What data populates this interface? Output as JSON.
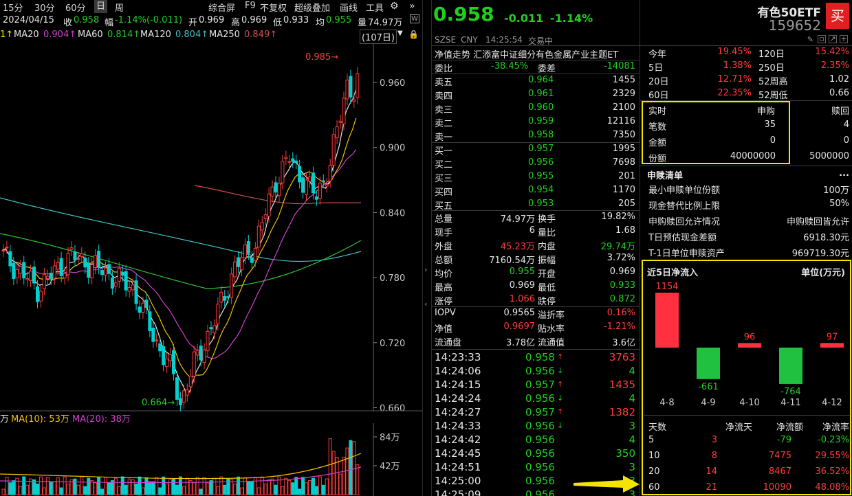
{
  "toolbar": {
    "items": [
      "15分",
      "30分",
      "60分",
      "日",
      "周",
      "综合屏",
      "F9",
      "不复权",
      "超级叠加",
      "画线",
      "工具"
    ],
    "selected": "日"
  },
  "quote_line": {
    "date": "2024/04/15",
    "close_label": "收",
    "close": "0.958",
    "amp_label": "幅",
    "change": "-1.14%(-0.011)",
    "open_label": "开",
    "open": "0.969",
    "high_label": "高",
    "high": "0.969",
    "low_label": "低",
    "low": "0.933",
    "avg_label": "均",
    "avg": "0.955",
    "vol_label": "量",
    "vol": "74.97万"
  },
  "ma_line": {
    "ma20": "MA20",
    "ma20_val": "0.904↑",
    "ma60": "MA60",
    "ma60_val": "0.814↑",
    "ma120": "MA120",
    "ma120_val": "0.804↑",
    "ma250": "MA250",
    "ma250_val": "0.849↑",
    "lead": "1↑",
    "period": "(107日)"
  },
  "price_axis": {
    "ticks": [
      "0.960",
      "0.900",
      "0.840",
      "0.780",
      "0.720",
      "0.660"
    ],
    "high_mark": "0.985",
    "low_mark": "0.664"
  },
  "volume_panel": {
    "legend_prefix": "万",
    "ma10": "MA(10): 53万",
    "ma20": "MA(20): 38万",
    "ticks": [
      "84万",
      "42万"
    ]
  },
  "colors": {
    "up": "#ff3c3c",
    "down": "#00d0d0",
    "ma5": "#e6e6e6",
    "ma10": "#f2c200",
    "ma20": "#d040d0",
    "ma60": "#30c030",
    "ma120": "#40c0c0",
    "ma250": "#d05050"
  },
  "header": {
    "price": "0.958",
    "change": "-0.011",
    "pct": "-1.14%",
    "market": "SZSE",
    "currency": "CNY",
    "time": "14:25:54",
    "status": "交易中",
    "name": "有色50ETF",
    "code": "159652",
    "buy_label": "买"
  },
  "fund_title": "净值走势 汇添富中证细分有色金属产业主题ET",
  "ratio": {
    "label": "委比",
    "value": "-38.45%",
    "diff_label": "委差",
    "diff": "-14081"
  },
  "asks": [
    {
      "label": "卖五",
      "price": "0.964",
      "vol": "1455"
    },
    {
      "label": "卖四",
      "price": "0.961",
      "vol": "2329"
    },
    {
      "label": "卖三",
      "price": "0.960",
      "vol": "2100"
    },
    {
      "label": "卖二",
      "price": "0.959",
      "vol": "12116"
    },
    {
      "label": "卖一",
      "price": "0.958",
      "vol": "7350"
    }
  ],
  "bids": [
    {
      "label": "买一",
      "price": "0.957",
      "vol": "1995"
    },
    {
      "label": "买二",
      "price": "0.956",
      "vol": "7698"
    },
    {
      "label": "买三",
      "price": "0.955",
      "vol": "201"
    },
    {
      "label": "买四",
      "price": "0.954",
      "vol": "1170"
    },
    {
      "label": "买五",
      "price": "0.953",
      "vol": "205"
    }
  ],
  "stats": [
    {
      "l1": "总量",
      "v1": "74.97万",
      "l2": "换手",
      "v2": "19.82%"
    },
    {
      "l1": "现手",
      "v1": "6",
      "l2": "量比",
      "v2": "1.68"
    },
    {
      "l1": "外盘",
      "v1": "45.23万",
      "l2": "内盘",
      "v2": "29.74万"
    },
    {
      "l1": "总额",
      "v1": "7160.54万",
      "l2": "振幅",
      "v2": "3.72%"
    },
    {
      "l1": "均价",
      "v1": "0.955",
      "l2": "开盘",
      "v2": "0.969"
    },
    {
      "l1": "最高",
      "v1": "0.969",
      "l2": "最低",
      "v2": "0.933"
    },
    {
      "l1": "涨停",
      "v1": "1.066",
      "l2": "跌停",
      "v2": "0.872"
    },
    {
      "l1": "IOPV",
      "v1": "0.9565",
      "l2": "溢折率",
      "v2": "0.16%"
    },
    {
      "l1": "净值",
      "v1": "0.9697",
      "l2": "贴水率",
      "v2": "-1.21%"
    },
    {
      "l1": "流通盘",
      "v1": "3.78亿",
      "l2": "流通值",
      "v2": "3.6亿"
    }
  ],
  "ticks_list": [
    {
      "time": "14:23:33",
      "price": "0.958",
      "dir": "↑",
      "vol": "3763"
    },
    {
      "time": "14:24:06",
      "price": "0.956",
      "dir": "↓",
      "vol": "4"
    },
    {
      "time": "14:24:15",
      "price": "0.957",
      "dir": "↑",
      "vol": "1435"
    },
    {
      "time": "14:24:24",
      "price": "0.956",
      "dir": "↓",
      "vol": "4"
    },
    {
      "time": "14:24:27",
      "price": "0.957",
      "dir": "↑",
      "vol": "1382"
    },
    {
      "time": "14:24:33",
      "price": "0.956",
      "dir": "↓",
      "vol": "3"
    },
    {
      "time": "14:24:42",
      "price": "0.956",
      "dir": "",
      "vol": "4"
    },
    {
      "time": "14:24:45",
      "price": "0.956",
      "dir": "",
      "vol": "350"
    },
    {
      "time": "14:24:51",
      "price": "0.956",
      "dir": "",
      "vol": "3"
    },
    {
      "time": "14:25:00",
      "price": "0.956",
      "dir": "",
      "vol": "3"
    },
    {
      "time": "14:25:09",
      "price": "0.956",
      "dir": "",
      "vol": "3"
    }
  ],
  "perf": [
    {
      "l1": "今年",
      "v1": "19.45%",
      "l2": "120日",
      "v2": "15.42%"
    },
    {
      "l1": "5日",
      "v1": "1.38%",
      "l2": "250日",
      "v2": "2.35%"
    },
    {
      "l1": "20日",
      "v1": "12.71%",
      "l2": "52周高",
      "v2": "1.02"
    },
    {
      "l1": "60日",
      "v1": "22.35%",
      "l2": "52周低",
      "v2": "0.66"
    }
  ],
  "realtime": {
    "h0": "实时",
    "h1": "申购",
    "h2": "赎回",
    "rows": [
      {
        "label": "笔数",
        "sub": "35",
        "red": "4"
      },
      {
        "label": "金额",
        "sub": "0",
        "red": "0"
      },
      {
        "label": "份额",
        "sub": "40000000",
        "red": "5000000"
      }
    ]
  },
  "redemption": {
    "title": "申赎清单",
    "more": "...",
    "rows": [
      {
        "label": "最小申赎单位份额",
        "value": "100万"
      },
      {
        "label": "现金替代比例上限",
        "value": "50%"
      },
      {
        "label": "申购赎回允许情况",
        "value": "申购赎回皆允许"
      },
      {
        "label": "T日预估现金差额",
        "value": "6918.30元"
      },
      {
        "label": "T-1日单位申赎资产",
        "value": "969719.30元"
      }
    ]
  },
  "flow": {
    "title": "近5日净流入",
    "unit": "单位(万元)",
    "chart_data": {
      "type": "bar",
      "categories": [
        "4-8",
        "4-9",
        "4-10",
        "4-11",
        "4-12"
      ],
      "values": [
        1154,
        -661,
        96,
        -764,
        97
      ]
    },
    "table_head": [
      "天数",
      "净流天",
      "净流额",
      "净流率"
    ],
    "table": [
      {
        "days": "5",
        "flow_days": "3",
        "amount": "-79",
        "rate": "-0.23%"
      },
      {
        "days": "10",
        "flow_days": "8",
        "amount": "7475",
        "rate": "29.55%"
      },
      {
        "days": "20",
        "flow_days": "14",
        "amount": "8467",
        "rate": "36.52%"
      },
      {
        "days": "60",
        "flow_days": "21",
        "amount": "10090",
        "rate": "48.08%"
      }
    ]
  }
}
